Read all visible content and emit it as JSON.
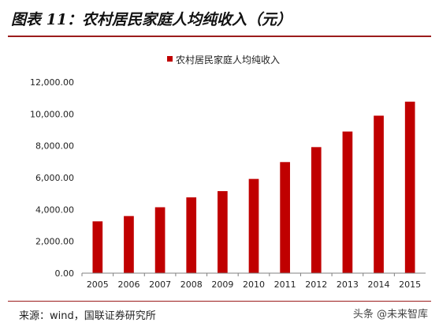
{
  "header": {
    "title": "图表 11：农村居民家庭人均纯收入（元）"
  },
  "footer": {
    "source": "来源：wind，国联证券研究所",
    "watermark": "头条 @未来智库"
  },
  "colors": {
    "bar": "#c00000",
    "accent_rule": "#9b1c1c",
    "axis": "#808080"
  },
  "chart_data": {
    "type": "bar",
    "title": "",
    "xlabel": "",
    "ylabel": "",
    "categories": [
      "2005",
      "2006",
      "2007",
      "2008",
      "2009",
      "2010",
      "2011",
      "2012",
      "2013",
      "2014",
      "2015"
    ],
    "series": [
      {
        "name": "农村居民家庭人均纯收入",
        "values": [
          3255,
          3587,
          4140,
          4761,
          5153,
          5919,
          6977,
          7917,
          8896,
          9892,
          10772
        ]
      }
    ],
    "ylim": [
      0,
      12000
    ],
    "yticks": [
      "0.00",
      "2,000.00",
      "4,000.00",
      "6,000.00",
      "8,000.00",
      "10,000.00",
      "12,000.00"
    ],
    "ytick_values": [
      0,
      2000,
      4000,
      6000,
      8000,
      10000,
      12000
    ],
    "grid": false,
    "legend_position": "top-center"
  }
}
